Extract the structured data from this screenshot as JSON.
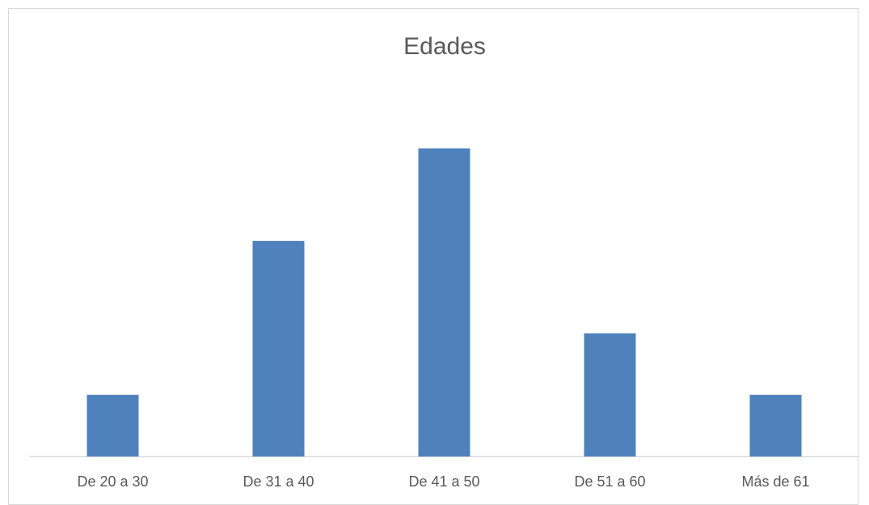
{
  "chart_data": {
    "type": "bar",
    "title": "Edades",
    "xlabel": "",
    "ylabel": "",
    "categories": [
      "De 20 a 30",
      "De 31 a 40",
      "De 41 a 50",
      "De 51 a 60",
      "Más de 61"
    ],
    "values": [
      2,
      7,
      10,
      4,
      2
    ],
    "ylim": [
      0,
      10
    ],
    "grid": false,
    "legend": "none",
    "colors": {
      "bar": "#4f81bd",
      "axis": "#d9d9d9",
      "text": "#595959"
    }
  }
}
